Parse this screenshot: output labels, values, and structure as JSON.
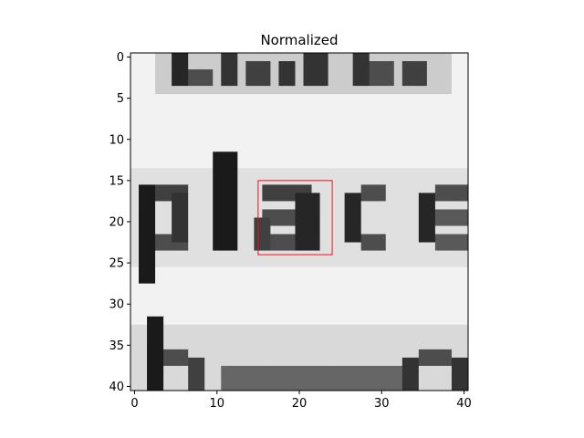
{
  "chart_data": {
    "type": "heatmap",
    "title": "Normalized",
    "xlabel": "",
    "ylabel": "",
    "xlim": [
      -0.5,
      40.5
    ],
    "ylim": [
      40.5,
      -0.5
    ],
    "grid": false,
    "colormap": "gray",
    "x_ticks": [
      0,
      10,
      20,
      30,
      40
    ],
    "y_ticks": [
      0,
      5,
      10,
      15,
      20,
      25,
      30,
      35,
      40
    ],
    "image_size": [
      41,
      41
    ],
    "text_shown": "place",
    "colors": {
      "background": "#f4f4f4",
      "ink": "#141414",
      "box": "#e8141e",
      "axis": "#000000"
    },
    "highlight_box": {
      "x0": 15,
      "y0": 15,
      "x1": 24,
      "y1": 24,
      "color": "#e8141e"
    }
  }
}
